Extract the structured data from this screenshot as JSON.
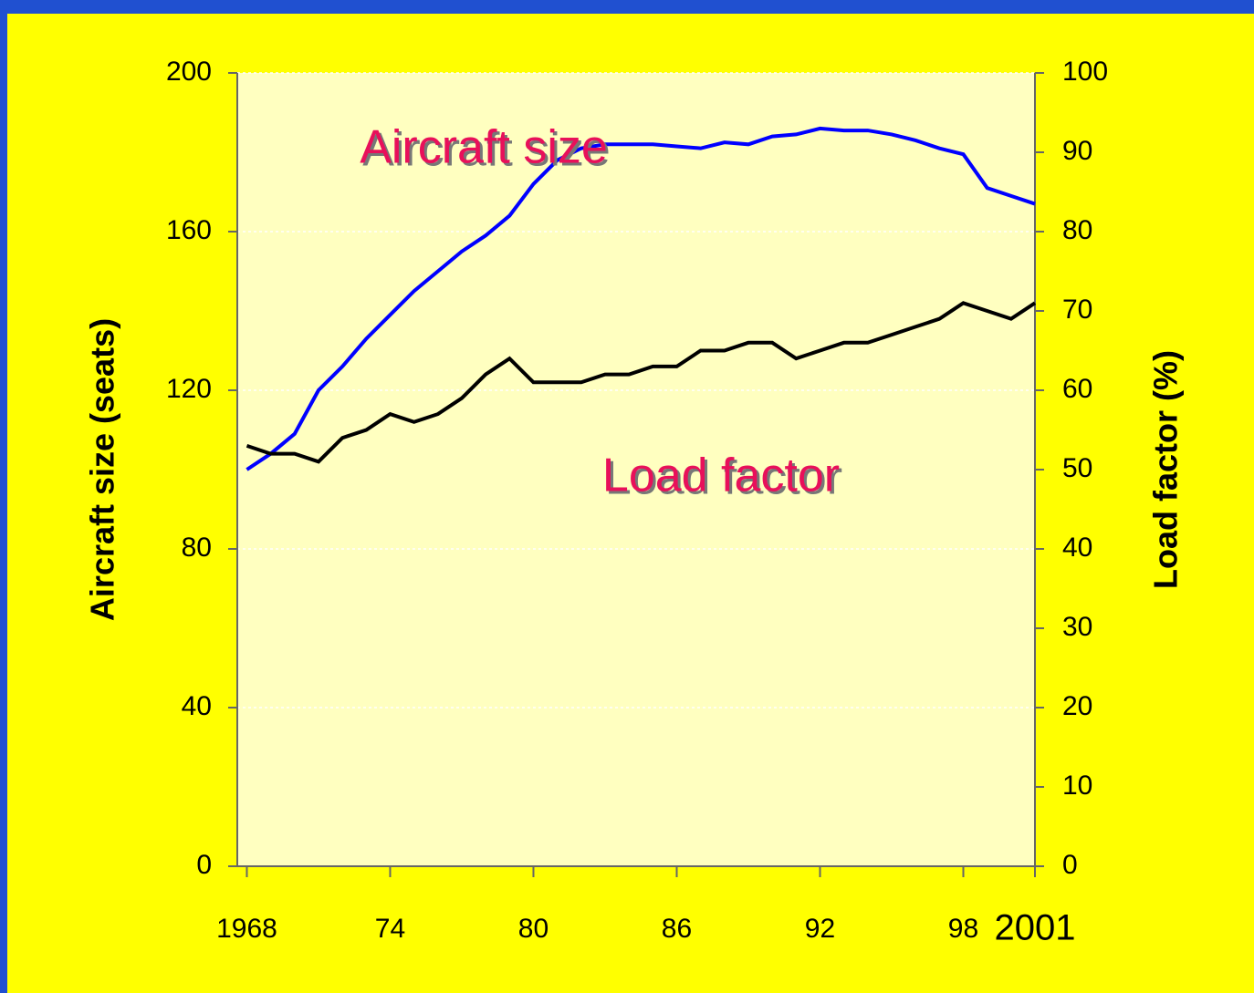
{
  "chart_data": {
    "type": "line",
    "x": [
      1968,
      1969,
      1970,
      1971,
      1972,
      1973,
      1974,
      1975,
      1976,
      1977,
      1978,
      1979,
      1980,
      1981,
      1982,
      1983,
      1984,
      1985,
      1986,
      1987,
      1988,
      1989,
      1990,
      1991,
      1992,
      1993,
      1994,
      1995,
      1996,
      1997,
      1998,
      1999,
      2000,
      2001
    ],
    "series": [
      {
        "name": "Aircraft size",
        "color": "#0000ff",
        "axis": "y",
        "values": [
          100,
          104,
          109,
          120,
          126,
          133,
          139,
          145,
          150,
          155,
          159,
          164,
          172,
          178,
          181,
          182,
          182,
          182,
          181.5,
          181,
          182.5,
          182,
          184,
          184.5,
          186,
          185.5,
          185.5,
          184.5,
          183,
          181,
          179.5,
          171,
          169,
          167
        ]
      },
      {
        "name": "Load factor",
        "color": "#000000",
        "axis": "y2",
        "values": [
          53,
          52,
          52,
          51,
          54,
          55,
          57,
          56,
          57,
          59,
          62,
          64,
          61,
          61,
          61,
          62,
          62,
          63,
          63,
          65,
          65,
          66,
          66,
          64,
          65,
          66,
          66,
          67,
          68,
          69,
          71,
          70,
          69,
          71
        ]
      }
    ],
    "ylabel": "Aircraft size (seats)",
    "y2label": "Load factor (%)",
    "xlim": [
      1967.6,
      2001
    ],
    "xticks": [
      {
        "value": 1968,
        "label": "1968"
      },
      {
        "value": 1974,
        "label": "74"
      },
      {
        "value": 1980,
        "label": "80"
      },
      {
        "value": 1986,
        "label": "86"
      },
      {
        "value": 1992,
        "label": "92"
      },
      {
        "value": 1998,
        "label": "98"
      },
      {
        "value": 2001,
        "label": "2001"
      }
    ],
    "ylim": [
      0,
      200
    ],
    "yticks": [
      0,
      40,
      80,
      120,
      160,
      200
    ],
    "y2lim": [
      0,
      100
    ],
    "y2ticks": [
      0,
      10,
      20,
      30,
      40,
      50,
      60,
      70,
      80,
      90,
      100
    ],
    "grid": true,
    "annotations": [
      "Aircraft size",
      "Load factor"
    ]
  }
}
